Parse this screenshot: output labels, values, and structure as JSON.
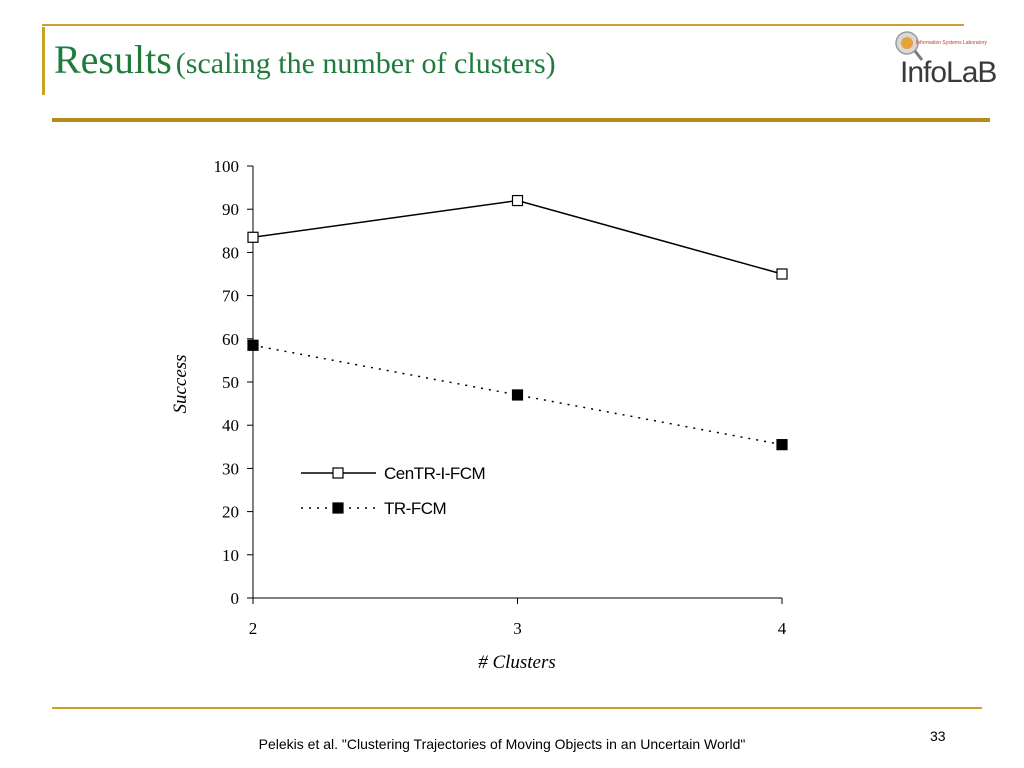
{
  "slide": {
    "title_main": "Results",
    "title_sub": "(scaling the number of clusters)",
    "footer": "Pelekis et al. \"Clustering Trajectories of Moving Objects in an Uncertain World\"",
    "page_number": "33",
    "logo": {
      "word": "InfoLaB",
      "tagline": "Information Systems Laboratory"
    }
  },
  "colors": {
    "title": "#1e7b3b",
    "rule": "#b58a1e",
    "accent": "#c9a227"
  },
  "chart_data": {
    "type": "line",
    "title": "",
    "xlabel": "# Clusters",
    "ylabel": "Success",
    "x": [
      2,
      3,
      4
    ],
    "x_tick_labels": [
      "2",
      "3",
      "4"
    ],
    "ylim": [
      0,
      100
    ],
    "y_ticks": [
      0,
      10,
      20,
      30,
      40,
      50,
      60,
      70,
      80,
      90,
      100
    ],
    "grid": false,
    "legend_position": "lower-left",
    "series": [
      {
        "name": "CenTR-I-FCM",
        "values": [
          83.5,
          92,
          75
        ],
        "line": "solid",
        "marker": "hollow-square"
      },
      {
        "name": "TR-FCM",
        "values": [
          58.5,
          47,
          35.5
        ],
        "line": "dotted",
        "marker": "filled-square"
      }
    ]
  }
}
